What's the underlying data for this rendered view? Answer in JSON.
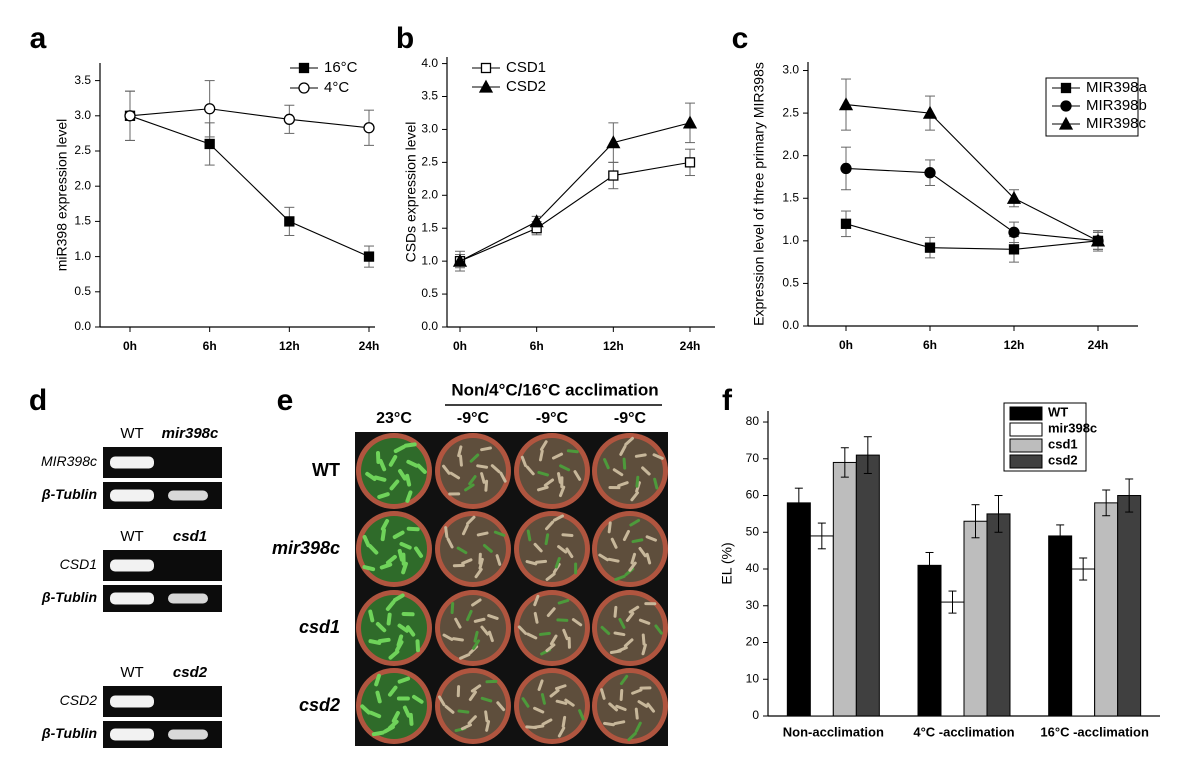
{
  "chart_data": [
    {
      "type": "line",
      "label": "a",
      "y_label": "miR398 expression level",
      "categories": [
        "0h",
        "6h",
        "12h",
        "24h"
      ],
      "ylim": [
        0,
        3.75
      ],
      "yticks": [
        {
          "value": 0,
          "label": "0.0"
        },
        0.5,
        {
          "value": 1,
          "label": "1.0"
        },
        1.5,
        {
          "value": 2,
          "label": "2.0"
        },
        2.5,
        {
          "value": 3,
          "label": "3.0"
        },
        3.5
      ],
      "legend": "upper right",
      "legend_frame": false,
      "series": [
        {
          "name": "16°C",
          "color": "#000000",
          "marker": "square",
          "filled": true,
          "values": [
            3.0,
            2.6,
            1.5,
            1.0
          ],
          "errors": [
            0.35,
            0.3,
            0.2,
            0.15
          ]
        },
        {
          "name": "4°C",
          "color": "#000000",
          "marker": "circle",
          "filled": false,
          "values": [
            3.0,
            3.1,
            2.95,
            2.83
          ],
          "errors": [
            0.35,
            0.4,
            0.2,
            0.25
          ]
        }
      ]
    },
    {
      "type": "line",
      "label": "b",
      "y_label": "CSDs expression level",
      "categories": [
        "0h",
        "6h",
        "12h",
        "24h"
      ],
      "ylim": [
        0,
        4.1
      ],
      "yticks": [
        {
          "value": 0,
          "label": "0.0"
        },
        0.5,
        {
          "value": 1,
          "label": "1.0"
        },
        1.5,
        {
          "value": 2,
          "label": "2.0"
        },
        2.5,
        {
          "value": 3,
          "label": "3.0"
        },
        3.5,
        {
          "value": 4,
          "label": "4.0"
        }
      ],
      "legend": "upper left",
      "legend_frame": false,
      "series": [
        {
          "name": "CSD1",
          "color": "#000000",
          "marker": "square",
          "filled": false,
          "values": [
            1.0,
            1.5,
            2.3,
            2.5
          ],
          "errors": [
            0.15,
            0.1,
            0.2,
            0.2
          ]
        },
        {
          "name": "CSD2",
          "color": "#000000",
          "marker": "triangle",
          "filled": true,
          "values": [
            1.0,
            1.6,
            2.8,
            3.1
          ],
          "errors": [
            0.1,
            0.08,
            0.3,
            0.3
          ]
        }
      ]
    },
    {
      "type": "line",
      "label": "c",
      "y_label": "Expression level of three primary MIR398s",
      "categories": [
        "0h",
        "6h",
        "12h",
        "24h"
      ],
      "ylim": [
        0,
        3.1
      ],
      "yticks": [
        {
          "value": 0,
          "label": "0.0"
        },
        0.5,
        {
          "value": 1,
          "label": "1.0"
        },
        1.5,
        {
          "value": 2,
          "label": "2.0"
        },
        2.5,
        {
          "value": 3,
          "label": "3.0"
        }
      ],
      "legend": "upper right",
      "legend_frame": true,
      "series": [
        {
          "name": "MIR398a",
          "color": "#000000",
          "marker": "square",
          "filled": true,
          "values": [
            1.2,
            0.92,
            0.9,
            1.0
          ],
          "errors": [
            0.15,
            0.12,
            0.15,
            0.1
          ]
        },
        {
          "name": "MIR398b",
          "color": "#000000",
          "marker": "circle",
          "filled": true,
          "values": [
            1.85,
            1.8,
            1.1,
            1.0
          ],
          "errors": [
            0.25,
            0.15,
            0.12,
            0.1
          ]
        },
        {
          "name": "MIR398c",
          "color": "#000000",
          "marker": "triangle",
          "filled": true,
          "values": [
            2.6,
            2.5,
            1.5,
            1.0
          ],
          "errors": [
            0.3,
            0.2,
            0.1,
            0.12
          ]
        }
      ]
    },
    {
      "type": "bar",
      "label": "f",
      "y_label": "EL (%)",
      "categories": [
        "Non-acclimation",
        "4°C -acclimation",
        "16°C -acclimation"
      ],
      "ylim": [
        0,
        83
      ],
      "yticks": [
        0,
        10,
        20,
        30,
        40,
        50,
        60,
        70,
        80
      ],
      "legend": "upper right",
      "legend_frame": true,
      "series": [
        {
          "name": "WT",
          "color": "#000000",
          "values": [
            58,
            41,
            49
          ],
          "errors": [
            4,
            3.5,
            3
          ]
        },
        {
          "name": "mir398c",
          "color": "#ffffff",
          "values": [
            49,
            31,
            40
          ],
          "errors": [
            3.5,
            3,
            3
          ]
        },
        {
          "name": "csd1",
          "color": "#bdbdbd",
          "values": [
            69,
            53,
            58
          ],
          "errors": [
            4,
            4.5,
            3.5
          ]
        },
        {
          "name": "csd2",
          "color": "#404040",
          "values": [
            71,
            55,
            60
          ],
          "errors": [
            5,
            5,
            4.5
          ]
        }
      ]
    }
  ],
  "gels": {
    "label": "d",
    "blocks": [
      {
        "lanes": [
          "WT",
          "mir398c"
        ],
        "rows": [
          "MIR398c",
          "β-Tublin"
        ]
      },
      {
        "lanes": [
          "WT",
          "csd1"
        ],
        "rows": [
          "CSD1",
          "β-Tublin"
        ]
      },
      {
        "lanes": [
          "WT",
          "csd2"
        ],
        "rows": [
          "CSD2",
          "β-Tublin"
        ]
      }
    ]
  },
  "photo": {
    "label": "e",
    "header": "Non/4°C/16°C acclimation",
    "columns": [
      "23°C",
      "-9°C",
      "-9°C",
      "-9°C"
    ],
    "rows": [
      "WT",
      "mir398c",
      "csd1",
      "csd2"
    ]
  }
}
